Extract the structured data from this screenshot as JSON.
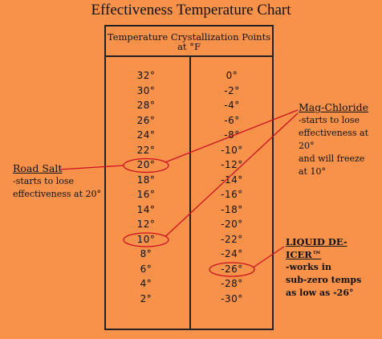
{
  "title": "Effectiveness Temperature Chart",
  "table": {
    "header_line1": "Temperature Crystallization Points",
    "header_line2": "at °F"
  },
  "chart_data": {
    "type": "table",
    "title": "Effectiveness Temperature Chart",
    "columns": [
      "Temperature Crystallization Points at °F"
    ],
    "left_column": [
      "32°",
      "30°",
      "28°",
      "26°",
      "24°",
      "22°",
      "20°",
      "18°",
      "16°",
      "14°",
      "12°",
      "10°",
      "8°",
      "6°",
      "4°",
      "2°"
    ],
    "right_column": [
      "0°",
      "-2°",
      "-4°",
      "-6°",
      "-8°",
      "-10°",
      "-12°",
      "-14°",
      "-16°",
      "-18°",
      "-20°",
      "-22°",
      "-24°",
      "-26°",
      "-28°",
      "-30°"
    ],
    "annotations": [
      {
        "label": "Road Salt",
        "lines": [
          "-starts to lose",
          "effectiveness at 20°"
        ],
        "target": "20°"
      },
      {
        "label": "Mag-Chloride",
        "lines": [
          "-starts to lose",
          "effectiveness at 20°",
          "and will freeze",
          "at 10°"
        ],
        "targets": [
          "20°",
          "10°"
        ]
      },
      {
        "label": "LIQUID DE-ICER™",
        "lines": [
          "-works in",
          "sub-zero temps",
          "as low as -26°"
        ],
        "target": "-26°"
      }
    ]
  },
  "colors": {
    "background": "#f8924a",
    "annotation": "#cc1122"
  }
}
